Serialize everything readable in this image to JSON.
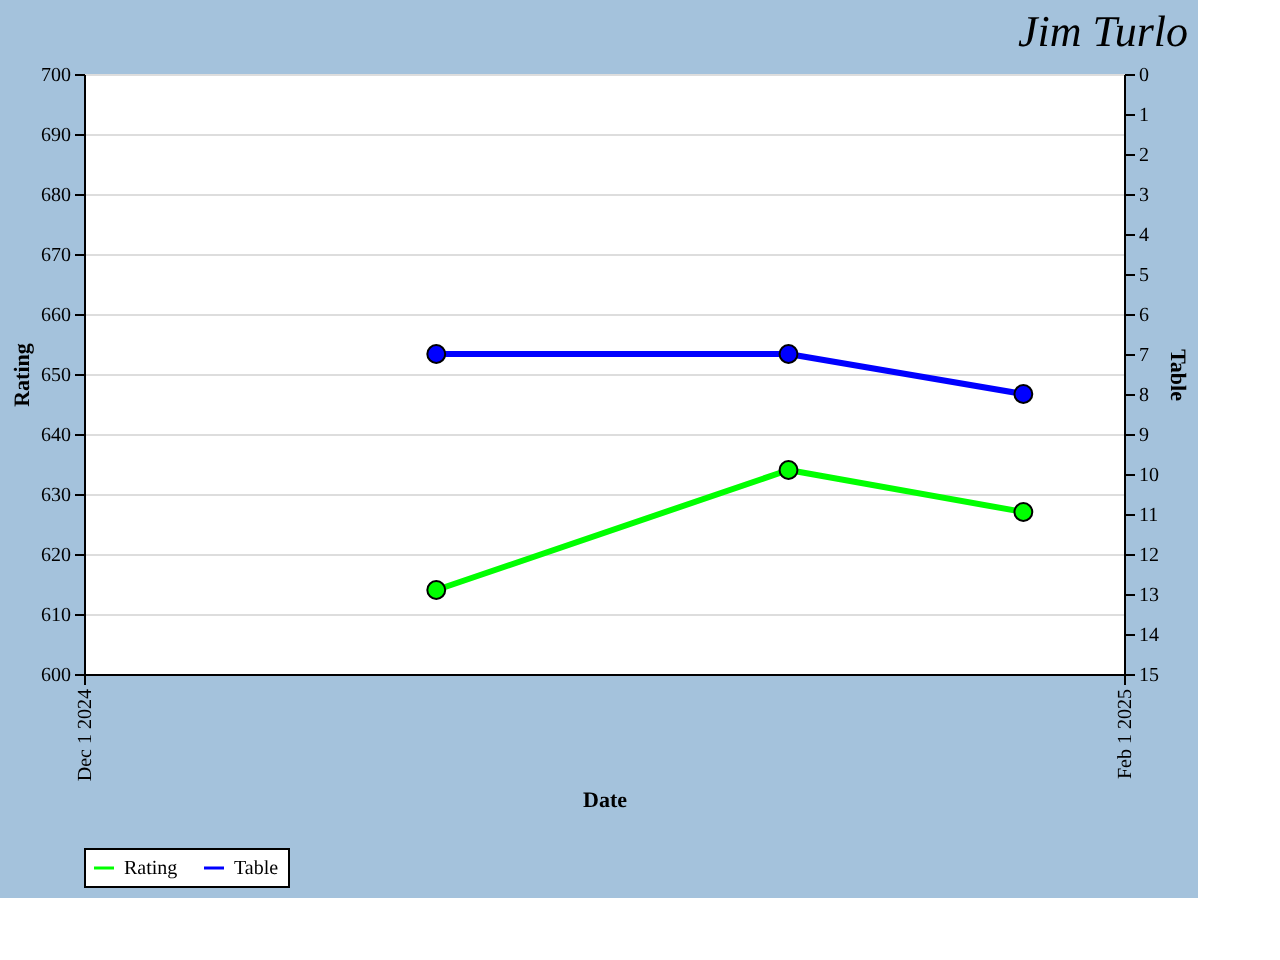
{
  "chart_data": {
    "type": "line",
    "title": "Jim Turlo",
    "xlabel": "Date",
    "ylabel": "Rating",
    "y2label": "Table",
    "x": [
      "2024-12-22",
      "2025-01-12",
      "2025-01-26"
    ],
    "series": [
      {
        "name": "Rating",
        "color": "#00ff00",
        "values": [
          614,
          634,
          627
        ]
      },
      {
        "name": "Table",
        "color": "#0000ff",
        "values": [
          7,
          7,
          8
        ],
        "axis": "y2"
      }
    ],
    "xlim": [
      "2024-12-01",
      "2025-02-01"
    ],
    "xticks": [
      {
        "value": "2024-12-01",
        "label": "Dec 1 2024"
      },
      {
        "value": "2025-02-01",
        "label": "Feb 1 2025"
      }
    ],
    "ylim": [
      600,
      700
    ],
    "yticks": [
      600,
      610,
      620,
      630,
      640,
      650,
      660,
      670,
      680,
      690,
      700
    ],
    "y2lim": [
      15,
      0
    ],
    "y2ticks": [
      0,
      1,
      2,
      3,
      4,
      5,
      6,
      7,
      8,
      9,
      10,
      11,
      12,
      13,
      14,
      15
    ],
    "grid": "y",
    "legend": "bottom",
    "marker": "circle",
    "line_style": "solid"
  }
}
